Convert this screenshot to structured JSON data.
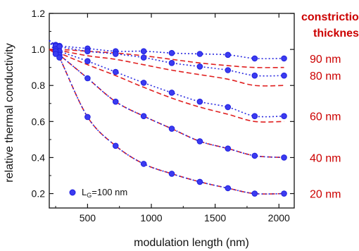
{
  "chart_data": {
    "type": "line",
    "xlabel": "modulation length (nm)",
    "ylabel": "relative thermal conductivity",
    "xlim": [
      200,
      2120
    ],
    "ylim": [
      0.12,
      1.2
    ],
    "xticks": [
      "500",
      "1000",
      "1500",
      "2000"
    ],
    "yticks": [
      "0.2",
      "0.4",
      "0.6",
      "0.8",
      "1.0",
      "1.2"
    ],
    "grid": false,
    "legend": {
      "position": "bottom-left",
      "marker_label_main": "L",
      "marker_label_sub": "G",
      "marker_label_rest": "=100 nm"
    },
    "annotation_title": [
      "constriction",
      "thickness"
    ],
    "colors": {
      "markers": "#1f1fe0",
      "marker_fill": "#3b3bf0",
      "model": "#e02020",
      "dotted": "#2a2ae0",
      "annotation": "#cc0000"
    },
    "x": [
      250,
      280,
      500,
      720,
      940,
      1160,
      1380,
      1600,
      1810,
      2040
    ],
    "series": [
      {
        "name": "90 nm",
        "values": [
          1.025,
          1.02,
          1.005,
          0.99,
          0.99,
          0.98,
          0.975,
          0.97,
          0.95,
          0.95
        ],
        "model": [
          1.0,
          1.0,
          0.99,
          0.98,
          0.965,
          0.945,
          0.925,
          0.91,
          0.9,
          0.9
        ]
      },
      {
        "name": "80 nm",
        "values": [
          1.02,
          1.015,
          0.99,
          0.975,
          0.955,
          0.925,
          0.905,
          0.885,
          0.855,
          0.855
        ],
        "model": [
          1.0,
          0.995,
          0.965,
          0.945,
          0.915,
          0.885,
          0.86,
          0.835,
          0.8,
          0.8
        ]
      },
      {
        "name": "60 nm",
        "values": [
          1.0,
          0.99,
          0.935,
          0.875,
          0.815,
          0.76,
          0.71,
          0.68,
          0.63,
          0.63
        ],
        "model": [
          0.995,
          0.98,
          0.915,
          0.855,
          0.79,
          0.73,
          0.68,
          0.64,
          0.6,
          0.6
        ]
      },
      {
        "name": "40 nm",
        "values": [
          0.99,
          0.97,
          0.84,
          0.71,
          0.63,
          0.56,
          0.49,
          0.45,
          0.41,
          0.4
        ],
        "model": [
          0.99,
          0.97,
          0.84,
          0.71,
          0.63,
          0.56,
          0.49,
          0.45,
          0.41,
          0.4
        ]
      },
      {
        "name": "20 nm",
        "values": [
          0.975,
          0.955,
          0.625,
          0.465,
          0.365,
          0.31,
          0.265,
          0.23,
          0.2,
          0.2
        ],
        "model": [
          0.975,
          0.955,
          0.625,
          0.465,
          0.365,
          0.31,
          0.265,
          0.23,
          0.2,
          0.2
        ]
      }
    ]
  }
}
